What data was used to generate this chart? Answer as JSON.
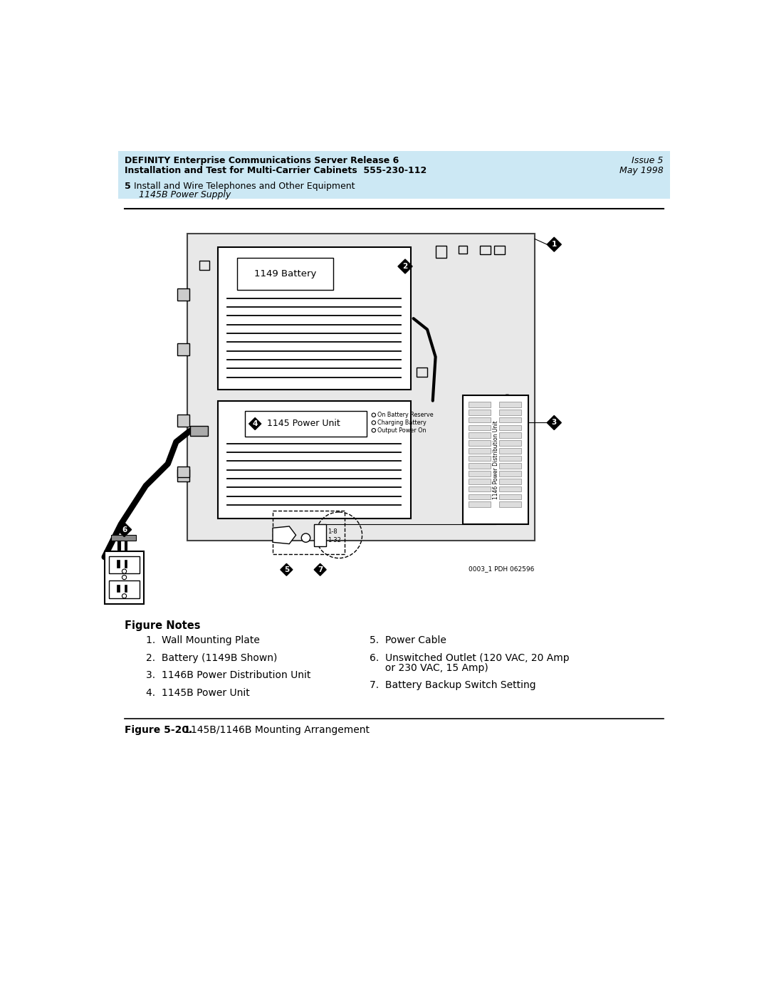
{
  "header_bg": "#cce8f4",
  "header_line1_bold": "DEFINITY Enterprise Communications Server Release 6",
  "header_line1_right": "Issue 5",
  "header_line2_bold": "Installation and Test for Multi-Carrier Cabinets  555-230-112",
  "header_line2_right": "May 1998",
  "subheader_line1_num": "5",
  "subheader_line1_text": "   Install and Wire Telephones and Other Equipment",
  "subheader_line2": "1145B Power Supply",
  "figure_notes_title": "Figure Notes",
  "notes_left": [
    "1.  Wall Mounting Plate",
    "2.  Battery (1149B Shown)",
    "3.  1146B Power Distribution Unit",
    "4.  1145B Power Unit"
  ],
  "notes_right_5": "5.  Power Cable",
  "notes_right_6a": "6.  Unswitched Outlet (120 VAC, 20 Amp",
  "notes_right_6b": "     or 230 VAC, 15 Amp)",
  "notes_right_7": "7.  Battery Backup Switch Setting",
  "figure_caption_bold": "Figure 5-20.",
  "figure_caption_text": "1145B/1146B Mounting Arrangement",
  "image_credit": "0003_1 PDH 062596",
  "bg_color": "#ffffff",
  "text_color": "#000000"
}
